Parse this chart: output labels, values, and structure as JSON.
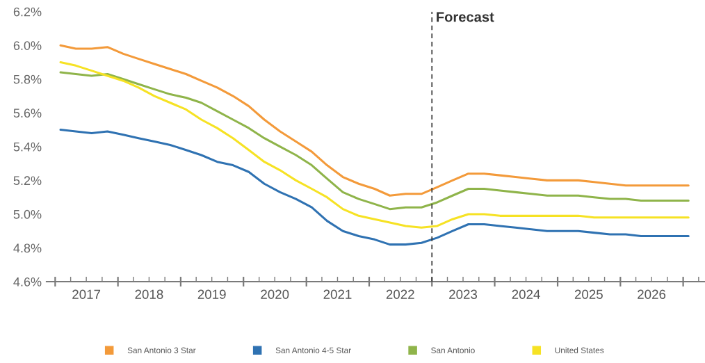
{
  "chart_data": {
    "type": "line",
    "x": [
      "2017-02",
      "2017-05",
      "2017-08",
      "2017-11",
      "2018-02",
      "2018-05",
      "2018-08",
      "2018-11",
      "2019-02",
      "2019-05",
      "2019-08",
      "2019-11",
      "2020-02",
      "2020-05",
      "2020-08",
      "2020-11",
      "2021-02",
      "2021-05",
      "2021-08",
      "2021-11",
      "2022-02",
      "2022-05",
      "2022-08",
      "2022-11",
      "2023-02",
      "2023-05",
      "2023-08",
      "2023-11",
      "2024-02",
      "2024-05",
      "2024-08",
      "2024-11",
      "2025-02",
      "2025-05",
      "2025-08",
      "2025-11",
      "2026-02",
      "2026-05",
      "2026-08",
      "2026-11",
      "2027-02"
    ],
    "series": [
      {
        "name": "San Antonio 3 Star",
        "color": "#f39a3a",
        "values": [
          6.0,
          5.98,
          5.98,
          5.99,
          5.95,
          5.92,
          5.89,
          5.86,
          5.83,
          5.79,
          5.75,
          5.7,
          5.64,
          5.56,
          5.49,
          5.43,
          5.37,
          5.29,
          5.22,
          5.18,
          5.15,
          5.11,
          5.12,
          5.12,
          5.16,
          5.2,
          5.24,
          5.24,
          5.23,
          5.22,
          5.21,
          5.2,
          5.2,
          5.2,
          5.19,
          5.18,
          5.17,
          5.17,
          5.17,
          5.17,
          5.17
        ]
      },
      {
        "name": "San Antonio 4-5 Star",
        "color": "#2f72b2",
        "values": [
          5.5,
          5.49,
          5.48,
          5.49,
          5.47,
          5.45,
          5.43,
          5.41,
          5.38,
          5.35,
          5.31,
          5.29,
          5.25,
          5.18,
          5.13,
          5.09,
          5.04,
          4.96,
          4.9,
          4.87,
          4.85,
          4.82,
          4.82,
          4.83,
          4.86,
          4.9,
          4.94,
          4.94,
          4.93,
          4.92,
          4.91,
          4.9,
          4.9,
          4.9,
          4.89,
          4.88,
          4.88,
          4.87,
          4.87,
          4.87,
          4.87
        ]
      },
      {
        "name": "San Antonio",
        "color": "#8fb44a",
        "values": [
          5.84,
          5.83,
          5.82,
          5.83,
          5.8,
          5.77,
          5.74,
          5.71,
          5.69,
          5.66,
          5.61,
          5.56,
          5.51,
          5.45,
          5.4,
          5.35,
          5.29,
          5.21,
          5.13,
          5.09,
          5.06,
          5.03,
          5.04,
          5.04,
          5.07,
          5.11,
          5.15,
          5.15,
          5.14,
          5.13,
          5.12,
          5.11,
          5.11,
          5.11,
          5.1,
          5.09,
          5.09,
          5.08,
          5.08,
          5.08,
          5.08
        ]
      },
      {
        "name": "United States",
        "color": "#f6e224",
        "values": [
          5.9,
          5.88,
          5.85,
          5.82,
          5.79,
          5.75,
          5.7,
          5.66,
          5.62,
          5.56,
          5.51,
          5.45,
          5.38,
          5.31,
          5.26,
          5.2,
          5.15,
          5.1,
          5.03,
          4.99,
          4.97,
          4.95,
          4.93,
          4.92,
          4.93,
          4.97,
          5.0,
          5.0,
          4.99,
          4.99,
          4.99,
          4.99,
          4.99,
          4.99,
          4.98,
          4.98,
          4.98,
          4.98,
          4.98,
          4.98,
          4.98
        ]
      }
    ],
    "xlim": [
      "2016-11-12",
      "2027-05-08"
    ],
    "xticks": [
      {
        "value": "2017-01-01",
        "label": null
      },
      {
        "value": "2017-04-01",
        "label": null
      },
      {
        "value": "2017-07-01",
        "label": "2017"
      },
      {
        "value": "2017-10-01",
        "label": null
      },
      {
        "value": "2018-01-01",
        "label": null
      },
      {
        "value": "2018-04-01",
        "label": null
      },
      {
        "value": "2018-07-01",
        "label": "2018"
      },
      {
        "value": "2018-10-01",
        "label": null
      },
      {
        "value": "2019-01-01",
        "label": null
      },
      {
        "value": "2019-04-01",
        "label": null
      },
      {
        "value": "2019-07-01",
        "label": "2019"
      },
      {
        "value": "2019-10-01",
        "label": null
      },
      {
        "value": "2020-01-01",
        "label": null
      },
      {
        "value": "2020-04-01",
        "label": null
      },
      {
        "value": "2020-07-01",
        "label": "2020"
      },
      {
        "value": "2020-10-01",
        "label": null
      },
      {
        "value": "2021-01-01",
        "label": null
      },
      {
        "value": "2021-04-01",
        "label": null
      },
      {
        "value": "2021-07-01",
        "label": "2021"
      },
      {
        "value": "2021-10-01",
        "label": null
      },
      {
        "value": "2022-01-01",
        "label": null
      },
      {
        "value": "2022-04-01",
        "label": null
      },
      {
        "value": "2022-07-01",
        "label": "2022"
      },
      {
        "value": "2022-10-01",
        "label": null
      },
      {
        "value": "2023-01-01",
        "label": null
      },
      {
        "value": "2023-04-01",
        "label": null
      },
      {
        "value": "2023-07-01",
        "label": "2023"
      },
      {
        "value": "2023-10-01",
        "label": null
      },
      {
        "value": "2024-01-01",
        "label": null
      },
      {
        "value": "2024-04-01",
        "label": null
      },
      {
        "value": "2024-07-01",
        "label": "2024"
      },
      {
        "value": "2024-10-01",
        "label": null
      },
      {
        "value": "2025-01-01",
        "label": null
      },
      {
        "value": "2025-04-01",
        "label": null
      },
      {
        "value": "2025-07-01",
        "label": "2025"
      },
      {
        "value": "2025-10-01",
        "label": null
      },
      {
        "value": "2026-01-01",
        "label": null
      },
      {
        "value": "2026-04-01",
        "label": null
      },
      {
        "value": "2026-07-01",
        "label": "2026"
      },
      {
        "value": "2026-10-01",
        "label": null
      },
      {
        "value": "2027-01-01",
        "label": null
      },
      {
        "value": "2027-04-01",
        "label": null
      }
    ],
    "ylim": [
      4.6,
      6.2
    ],
    "yticks": [
      {
        "value": 4.6,
        "label": "4.6%"
      },
      {
        "value": 4.8,
        "label": "4.8%"
      },
      {
        "value": 5.0,
        "label": "5.0%"
      },
      {
        "value": 5.2,
        "label": "5.2%"
      },
      {
        "value": 5.4,
        "label": "5.4%"
      },
      {
        "value": 5.6,
        "label": "5.6%"
      },
      {
        "value": 5.8,
        "label": "5.8%"
      },
      {
        "value": 6.0,
        "label": "6.0%"
      },
      {
        "value": 6.2,
        "label": "6.2%"
      }
    ],
    "ref_lines": [
      {
        "axis": "x",
        "value": "2023-01-01",
        "label": "Forecast",
        "color": "#333333",
        "line_style": "dashed"
      }
    ],
    "legend": "bottom",
    "line_style": "solid",
    "marker": "none"
  }
}
